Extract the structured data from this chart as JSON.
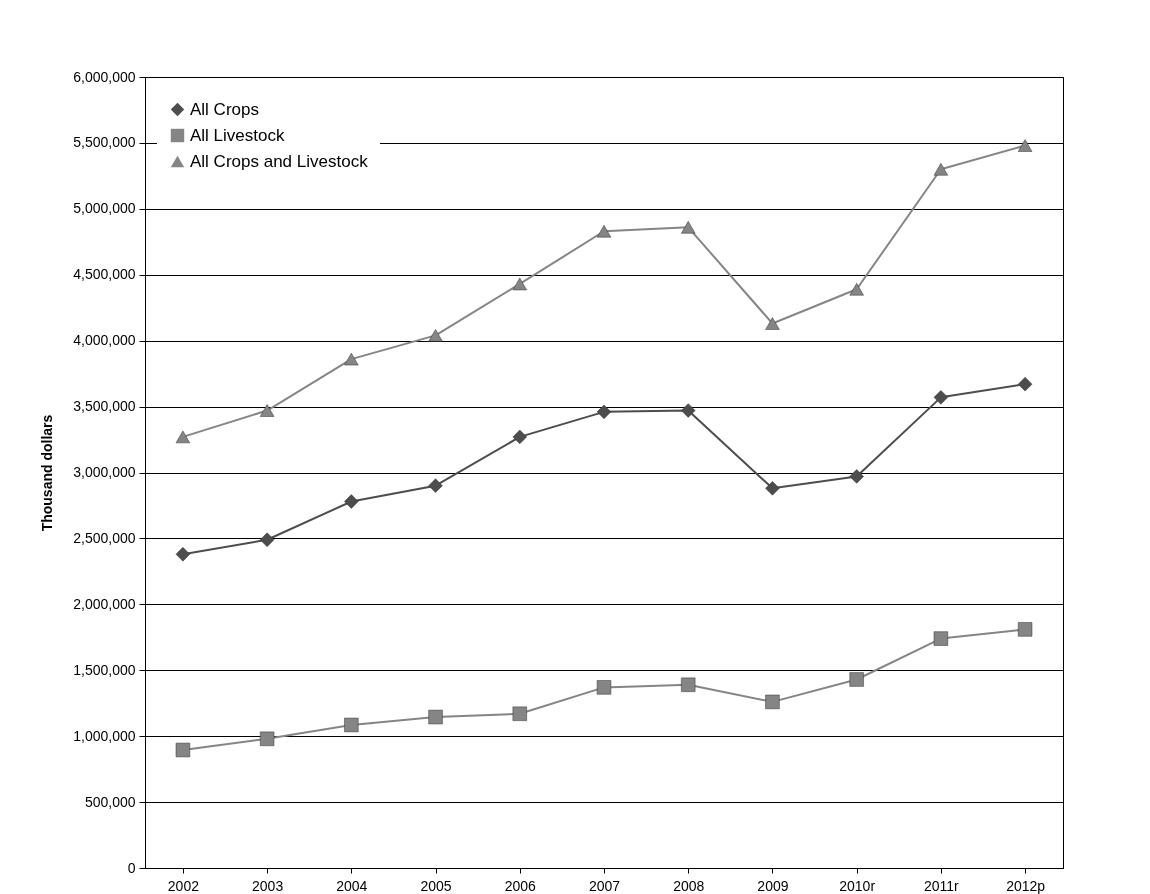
{
  "chart_data": {
    "type": "line",
    "ylabel": "Thousand dollars",
    "categories": [
      "2002",
      "2003",
      "2004",
      "2005",
      "2006",
      "2007",
      "2008",
      "2009",
      "2010r",
      "2011r",
      "2012p"
    ],
    "series": [
      {
        "name": "All Crops",
        "color": "#4d4d4d",
        "marker": "diamond",
        "values": [
          2380000,
          2490000,
          2780000,
          2900000,
          3270000,
          3460000,
          3470000,
          2880000,
          2970000,
          3570000,
          3670000
        ]
      },
      {
        "name": "All Livestock",
        "color": "#858585",
        "marker": "square",
        "values": [
          895000,
          980000,
          1085000,
          1145000,
          1170000,
          1370000,
          1390000,
          1260000,
          1430000,
          1740000,
          1810000
        ]
      },
      {
        "name": "All Crops and Livestock",
        "color": "#858585",
        "marker": "triangle",
        "values": [
          3270000,
          3470000,
          3860000,
          4040000,
          4430000,
          4830000,
          4860000,
          4130000,
          4390000,
          5300000,
          5480000
        ]
      }
    ],
    "ylim": [
      0,
      6000000
    ],
    "yticks": [
      0,
      {
        "value": 500000,
        "label": "500,000"
      },
      {
        "value": 1000000,
        "label": "1,000,000"
      },
      {
        "value": 1500000,
        "label": "1,500,000"
      },
      {
        "value": 2000000,
        "label": "2,000,000"
      },
      {
        "value": 2500000,
        "label": "2,500,000"
      },
      {
        "value": 3000000,
        "label": "3,000,000"
      },
      {
        "value": 3500000,
        "label": "3,500,000"
      },
      {
        "value": 4000000,
        "label": "4,000,000"
      },
      {
        "value": 4500000,
        "label": "4,500,000"
      },
      {
        "value": 5000000,
        "label": "5,000,000"
      },
      {
        "value": 5500000,
        "label": "5,500,000"
      },
      {
        "value": 6000000,
        "label": "6,000,000"
      }
    ],
    "grid": "y",
    "legend": "top left",
    "line_style": "solid"
  }
}
